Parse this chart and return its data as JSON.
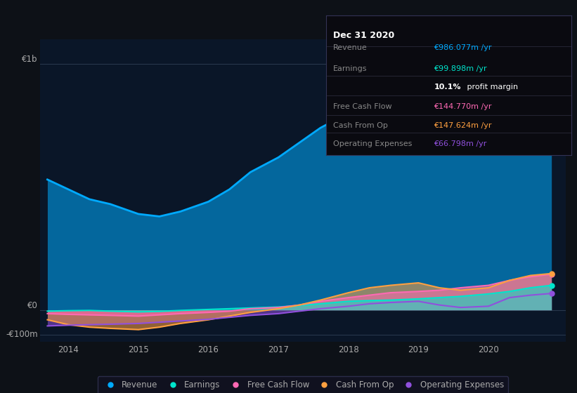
{
  "bg_color": "#0d1117",
  "plot_bg_color": "#0a1628",
  "grid_color": "#2a3a50",
  "tick_label_color": "#aaaaaa",
  "years": [
    2013.7,
    2014.0,
    2014.3,
    2014.6,
    2015.0,
    2015.3,
    2015.6,
    2016.0,
    2016.3,
    2016.6,
    2017.0,
    2017.3,
    2017.6,
    2018.0,
    2018.3,
    2018.6,
    2019.0,
    2019.3,
    2019.6,
    2020.0,
    2020.3,
    2020.6,
    2020.9
  ],
  "revenue": [
    530,
    490,
    450,
    430,
    390,
    380,
    400,
    440,
    490,
    560,
    620,
    680,
    740,
    800,
    810,
    820,
    830,
    850,
    880,
    920,
    940,
    960,
    986
  ],
  "earnings": [
    -5,
    -3,
    -2,
    -5,
    -8,
    -6,
    -2,
    2,
    5,
    8,
    12,
    18,
    25,
    35,
    38,
    40,
    45,
    50,
    55,
    65,
    75,
    90,
    100
  ],
  "free_cash_flow": [
    -15,
    -18,
    -20,
    -22,
    -25,
    -20,
    -15,
    -10,
    -5,
    5,
    10,
    20,
    35,
    50,
    60,
    70,
    75,
    80,
    90,
    100,
    120,
    135,
    145
  ],
  "cash_from_op": [
    -40,
    -60,
    -70,
    -75,
    -80,
    -70,
    -55,
    -40,
    -25,
    -10,
    5,
    20,
    40,
    70,
    90,
    100,
    110,
    90,
    80,
    90,
    120,
    140,
    148
  ],
  "operating_expenses": [
    -65,
    -62,
    -60,
    -58,
    -55,
    -50,
    -45,
    -38,
    -30,
    -22,
    -15,
    -5,
    5,
    15,
    25,
    30,
    35,
    20,
    10,
    15,
    50,
    60,
    67
  ],
  "revenue_color": "#00aaff",
  "earnings_color": "#00e5cc",
  "free_cash_flow_color": "#ff69b4",
  "cash_from_op_color": "#ffa040",
  "operating_expenses_color": "#9050dd",
  "ylim_min": -130,
  "ylim_max": 1100,
  "x_ticks": [
    2014.0,
    2015.0,
    2016.0,
    2017.0,
    2018.0,
    2019.0,
    2020.0
  ],
  "x_tick_labels": [
    "2014",
    "2015",
    "2016",
    "2017",
    "2018",
    "2019",
    "2020"
  ],
  "xlim_min": 2013.6,
  "xlim_max": 2021.1,
  "legend_labels": [
    "Revenue",
    "Earnings",
    "Free Cash Flow",
    "Cash From Op",
    "Operating Expenses"
  ],
  "legend_colors": [
    "#00aaff",
    "#00e5cc",
    "#ff69b4",
    "#ffa040",
    "#9050dd"
  ],
  "info_box": {
    "title": "Dec 31 2020",
    "title_color": "#ffffff",
    "bg_color": "#0a0a10",
    "border_color": "#333355",
    "divider_color": "#2a2a3a",
    "label_color": "#888888",
    "rows": [
      {
        "label": "Revenue",
        "value": "€986.077m /yr",
        "value_color": "#00aaff"
      },
      {
        "label": "Earnings",
        "value": "€99.898m /yr",
        "value_color": "#00e5cc"
      },
      {
        "label": "",
        "value": "10.1% profit margin",
        "value_color": "#ffffff",
        "bold_part": "10.1%"
      },
      {
        "label": "Free Cash Flow",
        "value": "€144.770m /yr",
        "value_color": "#ff69b4"
      },
      {
        "label": "Cash From Op",
        "value": "€147.624m /yr",
        "value_color": "#ffa040"
      },
      {
        "label": "Operating Expenses",
        "value": "€66.798m /yr",
        "value_color": "#9050dd"
      }
    ]
  }
}
